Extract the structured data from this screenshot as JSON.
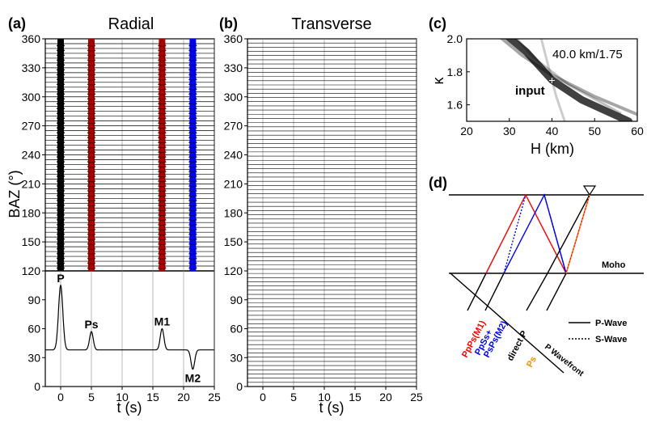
{
  "chart_data": [
    {
      "panel": "(a)",
      "type": "line",
      "title": "Radial",
      "xlabel": "t (s)",
      "ylabel": "BAZ (°)",
      "xlim": [
        -2.5,
        25
      ],
      "xticks": [
        0,
        5,
        10,
        15,
        20,
        25
      ],
      "baz_lim": [
        120,
        360
      ],
      "baz_ticks": [
        120,
        150,
        180,
        210,
        240,
        270,
        300,
        330,
        360
      ],
      "baz_traces": [
        125,
        130,
        135,
        140,
        145,
        150,
        155,
        160,
        165,
        170,
        175,
        180,
        185,
        190,
        195,
        200,
        205,
        210,
        215,
        220,
        225,
        230,
        235,
        240,
        245,
        250,
        255,
        260,
        265,
        270,
        275,
        280,
        285,
        290,
        295,
        300,
        305,
        310,
        315,
        320,
        325,
        330,
        335,
        340,
        345,
        350,
        355
      ],
      "phase_times": [
        {
          "t": 0,
          "color": "#000000"
        },
        {
          "t": 5,
          "color": "#b00000"
        },
        {
          "t": 16.5,
          "color": "#b00000"
        },
        {
          "t": 21.5,
          "color": "#0000ff"
        }
      ],
      "stack": {
        "ylim": [
          0,
          120
        ],
        "yticks": [
          0,
          30,
          60,
          90,
          120
        ],
        "baseline": 38,
        "peaks": [
          {
            "label": "P",
            "t": 0,
            "amplitude": 105
          },
          {
            "label": "Ps",
            "t": 5,
            "amplitude": 57
          },
          {
            "label": "M1",
            "t": 16.5,
            "amplitude": 60
          },
          {
            "label": "M2",
            "t": 21.5,
            "amplitude": 18
          }
        ]
      }
    },
    {
      "panel": "(b)",
      "type": "line",
      "title": "Transverse",
      "xlabel": "t (s)",
      "xlim": [
        -2.5,
        25
      ],
      "xticks": [
        0,
        5,
        10,
        15,
        20,
        25
      ],
      "baz_lim": [
        120,
        360
      ],
      "baz_ticks": [
        120,
        150,
        180,
        210,
        240,
        270,
        300,
        330,
        360
      ],
      "stack": {
        "ylim": [
          0,
          120
        ],
        "yticks": [
          0,
          30,
          60,
          90,
          120
        ]
      }
    },
    {
      "panel": "(c)",
      "type": "heatmap",
      "xlabel": "H (km)",
      "ylabel": "κ",
      "xlim": [
        20,
        60
      ],
      "ylim": [
        1.5,
        2.0
      ],
      "xticks": [
        20,
        30,
        40,
        50,
        60
      ],
      "yticks": [
        1.6,
        1.8,
        2.0
      ],
      "annotation": "40.0 km/1.75",
      "marker": {
        "label": "input",
        "H": 40,
        "k": 1.75
      }
    }
  ],
  "diagram": {
    "panel": "(d)",
    "moho_label": "Moho",
    "legend": [
      {
        "label": "P-Wave",
        "style": "solid"
      },
      {
        "label": "S-Wave",
        "style": "dotted"
      }
    ],
    "rays": [
      {
        "label": "PpPs(M1)",
        "color": "#ff0000"
      },
      {
        "label": "PpSs+\nPsPs(M2)",
        "color": "#0000ff"
      },
      {
        "label": "direct P",
        "color": "#000000"
      },
      {
        "label": "Ps",
        "color": "#ff8c00"
      },
      {
        "label": "P Wavefront",
        "color": "#000000"
      }
    ],
    "colors": {
      "station": "#ffffff",
      "moho": "#000000"
    }
  }
}
